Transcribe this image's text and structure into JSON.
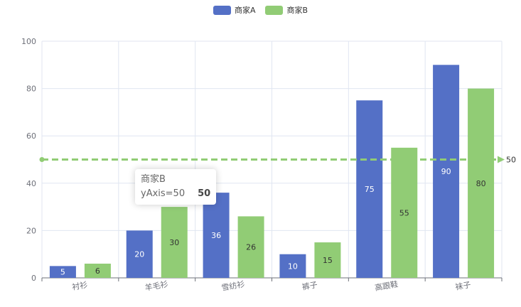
{
  "chart_data": {
    "type": "bar",
    "categories": [
      "衬衫",
      "羊毛衫",
      "雪纺衫",
      "裤子",
      "高跟鞋",
      "袜子"
    ],
    "series": [
      {
        "name": "商家A",
        "values": [
          5,
          20,
          36,
          10,
          75,
          90
        ],
        "color": "#5470c6"
      },
      {
        "name": "商家B",
        "values": [
          6,
          30,
          26,
          15,
          55,
          80
        ],
        "color": "#91cc75"
      }
    ],
    "ylim": [
      0,
      100
    ],
    "yticks": [
      0,
      20,
      40,
      60,
      80,
      100
    ],
    "grid": true,
    "legend_position": "top-center",
    "mark_line": {
      "value": 50,
      "label": "50",
      "color": "#91cc75",
      "style": "dashed"
    }
  },
  "tooltip": {
    "series_name": "商家B",
    "label": "yAxis=50",
    "value": "50"
  },
  "colors": {
    "axis": "#6e7079",
    "grid": "#e0e6f1",
    "label_on_a": "#ffffff",
    "label_on_b": "#333333"
  }
}
